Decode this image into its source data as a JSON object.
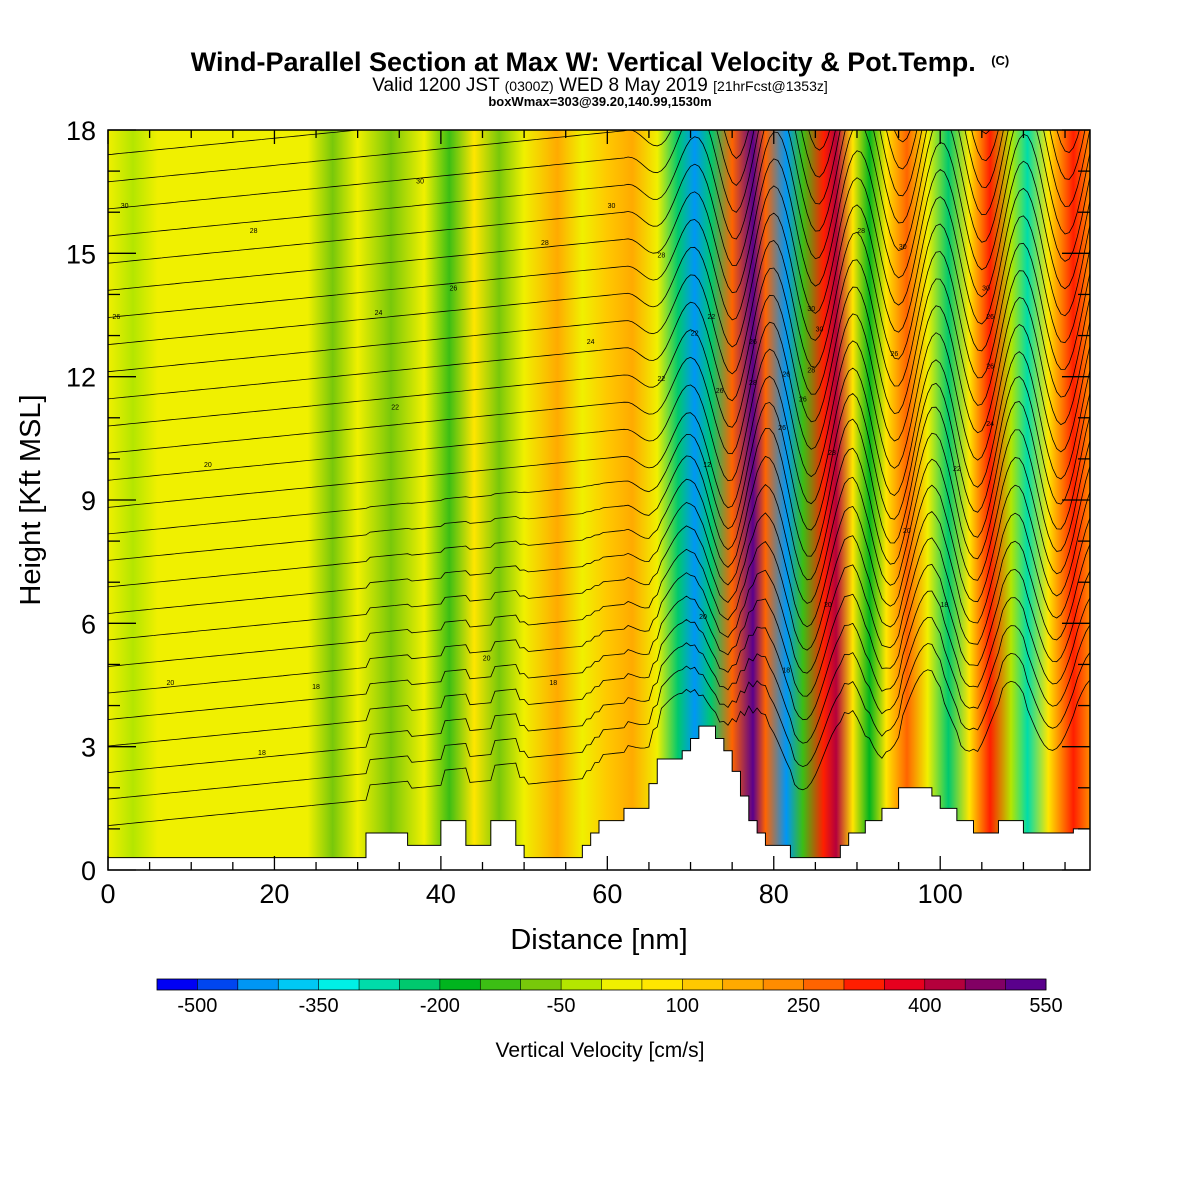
{
  "title": {
    "main": "Wind-Parallel Section at Max W: Vertical Velocity & Pot.Temp.",
    "copyright": "(C)",
    "valid_prefix": "Valid 1200 JST",
    "valid_utc": "(0300Z)",
    "valid_date": "WED 8 May 2019",
    "forecast": "[21hrFcst@1353z]",
    "boxwmax": "boxWmax=303@39.20,140.99,1530m"
  },
  "colorbar": {
    "label": "Vertical Velocity [cm/s]",
    "tick_labels": [
      "-500",
      "-350",
      "-200",
      "-50",
      "100",
      "250",
      "400",
      "550"
    ],
    "colors": [
      "#0000f5",
      "#0046f0",
      "#0096f5",
      "#00c8f5",
      "#00f0e6",
      "#00dcaa",
      "#00c86e",
      "#00b41e",
      "#3cbe14",
      "#78c80a",
      "#b4e600",
      "#f0f000",
      "#ffe600",
      "#ffc800",
      "#ffaa00",
      "#ff8c00",
      "#ff6400",
      "#ff1e00",
      "#e6001e",
      "#b4003c",
      "#820064",
      "#5a008c"
    ]
  },
  "chart_data": {
    "type": "heatmap",
    "title": "Wind-Parallel Section at Max W: Vertical Velocity & Pot.Temp.",
    "xlabel": "Distance [nm]",
    "ylabel": "Height [Kft MSL]",
    "xlim": [
      0,
      118
    ],
    "ylim": [
      0,
      18
    ],
    "x_ticks": [
      "0",
      "20",
      "40",
      "60",
      "80",
      "100"
    ],
    "y_ticks": [
      "0",
      "3",
      "6",
      "9",
      "12",
      "15",
      "18"
    ],
    "vertical_velocity_bands": [
      {
        "x": 0,
        "w": 0
      },
      {
        "x": 3,
        "w": -30
      },
      {
        "x": 6,
        "w": 15
      },
      {
        "x": 15,
        "w": 15
      },
      {
        "x": 24,
        "w": 10
      },
      {
        "x": 27,
        "w": -60
      },
      {
        "x": 30,
        "w": 10
      },
      {
        "x": 34,
        "w": -80
      },
      {
        "x": 38,
        "w": 25
      },
      {
        "x": 41,
        "w": -110
      },
      {
        "x": 44,
        "w": 50
      },
      {
        "x": 47,
        "w": -100
      },
      {
        "x": 50,
        "w": 40
      },
      {
        "x": 54,
        "w": 150
      },
      {
        "x": 57,
        "w": 35
      },
      {
        "x": 60,
        "w": 120
      },
      {
        "x": 63,
        "w": 150
      },
      {
        "x": 66,
        "w": 20
      },
      {
        "x": 68.5,
        "w": -250
      },
      {
        "x": 70.5,
        "w": -420
      },
      {
        "x": 72.5,
        "w": -250
      },
      {
        "x": 75,
        "w": 250
      },
      {
        "x": 77.5,
        "w": 560
      },
      {
        "x": 79,
        "w": 250
      },
      {
        "x": 81.5,
        "w": -420
      },
      {
        "x": 83.5,
        "w": -150
      },
      {
        "x": 86,
        "w": 300
      },
      {
        "x": 87.5,
        "w": 420
      },
      {
        "x": 89.5,
        "w": 80
      },
      {
        "x": 91.5,
        "w": -200
      },
      {
        "x": 93.5,
        "w": 50
      },
      {
        "x": 96,
        "w": 250
      },
      {
        "x": 98.5,
        "w": 40
      },
      {
        "x": 101,
        "w": -250
      },
      {
        "x": 103.5,
        "w": 50
      },
      {
        "x": 106,
        "w": 300
      },
      {
        "x": 108.5,
        "w": -50
      },
      {
        "x": 110.5,
        "w": -300
      },
      {
        "x": 113,
        "w": 50
      },
      {
        "x": 116,
        "w": 300
      },
      {
        "x": 118,
        "w": 200
      }
    ],
    "terrain_kft": [
      {
        "x": 0,
        "h": 0.3
      },
      {
        "x": 30,
        "h": 0.3
      },
      {
        "x": 31,
        "h": 0.9
      },
      {
        "x": 35,
        "h": 0.9
      },
      {
        "x": 36,
        "h": 0.6
      },
      {
        "x": 39,
        "h": 0.6
      },
      {
        "x": 40,
        "h": 1.2
      },
      {
        "x": 42,
        "h": 1.2
      },
      {
        "x": 43,
        "h": 0.6
      },
      {
        "x": 45,
        "h": 0.6
      },
      {
        "x": 46,
        "h": 1.2
      },
      {
        "x": 48,
        "h": 1.2
      },
      {
        "x": 49,
        "h": 0.6
      },
      {
        "x": 50,
        "h": 0.3
      },
      {
        "x": 56,
        "h": 0.3
      },
      {
        "x": 57,
        "h": 0.6
      },
      {
        "x": 58,
        "h": 0.9
      },
      {
        "x": 59,
        "h": 1.2
      },
      {
        "x": 62,
        "h": 1.5
      },
      {
        "x": 65,
        "h": 2.1
      },
      {
        "x": 66,
        "h": 2.7
      },
      {
        "x": 69,
        "h": 2.9
      },
      {
        "x": 70,
        "h": 3.2
      },
      {
        "x": 71,
        "h": 3.5
      },
      {
        "x": 72,
        "h": 3.5
      },
      {
        "x": 73,
        "h": 3.2
      },
      {
        "x": 74,
        "h": 2.9
      },
      {
        "x": 75,
        "h": 2.4
      },
      {
        "x": 76,
        "h": 1.8
      },
      {
        "x": 77,
        "h": 1.2
      },
      {
        "x": 78,
        "h": 0.9
      },
      {
        "x": 79,
        "h": 0.6
      },
      {
        "x": 82,
        "h": 0.3
      },
      {
        "x": 87,
        "h": 0.3
      },
      {
        "x": 88,
        "h": 0.6
      },
      {
        "x": 89,
        "h": 0.9
      },
      {
        "x": 91,
        "h": 1.2
      },
      {
        "x": 93,
        "h": 1.5
      },
      {
        "x": 95,
        "h": 2.0
      },
      {
        "x": 98,
        "h": 2.0
      },
      {
        "x": 99,
        "h": 1.8
      },
      {
        "x": 100,
        "h": 1.5
      },
      {
        "x": 102,
        "h": 1.2
      },
      {
        "x": 104,
        "h": 0.9
      },
      {
        "x": 107,
        "h": 1.2
      },
      {
        "x": 110,
        "h": 0.9
      },
      {
        "x": 116,
        "h": 1.0
      },
      {
        "x": 118,
        "h": 0.3
      }
    ],
    "theta_contour_labels": [
      {
        "text": "30",
        "x": 2.0,
        "y": 16.1
      },
      {
        "text": "28",
        "x": 17.5,
        "y": 15.5
      },
      {
        "text": "30",
        "x": 37.5,
        "y": 16.7
      },
      {
        "text": "30",
        "x": 60.5,
        "y": 16.1
      },
      {
        "text": "28",
        "x": 52.5,
        "y": 15.2
      },
      {
        "text": "28",
        "x": 66.5,
        "y": 14.9
      },
      {
        "text": "26",
        "x": 41.5,
        "y": 14.1
      },
      {
        "text": "24",
        "x": 32.5,
        "y": 13.5
      },
      {
        "text": "26",
        "x": 1.0,
        "y": 13.4
      },
      {
        "text": "24",
        "x": 58,
        "y": 12.8
      },
      {
        "text": "22",
        "x": 34.5,
        "y": 11.2
      },
      {
        "text": "22",
        "x": 66.5,
        "y": 11.9
      },
      {
        "text": "20",
        "x": 12,
        "y": 9.8
      },
      {
        "text": "22",
        "x": 70.5,
        "y": 13.0
      },
      {
        "text": "22",
        "x": 72.5,
        "y": 13.4
      },
      {
        "text": "26",
        "x": 73.5,
        "y": 11.6
      },
      {
        "text": "12",
        "x": 72.0,
        "y": 9.8
      },
      {
        "text": "26",
        "x": 77.5,
        "y": 12.8
      },
      {
        "text": "28",
        "x": 77.5,
        "y": 11.8
      },
      {
        "text": "26",
        "x": 81.5,
        "y": 12.0
      },
      {
        "text": "30",
        "x": 84.5,
        "y": 13.6
      },
      {
        "text": "30",
        "x": 85.5,
        "y": 13.1
      },
      {
        "text": "28",
        "x": 84.5,
        "y": 12.1
      },
      {
        "text": "26",
        "x": 83.5,
        "y": 11.4
      },
      {
        "text": "26",
        "x": 81,
        "y": 10.7
      },
      {
        "text": "28",
        "x": 87.0,
        "y": 10.1
      },
      {
        "text": "28",
        "x": 90.5,
        "y": 15.5
      },
      {
        "text": "30",
        "x": 95.5,
        "y": 15.1
      },
      {
        "text": "26",
        "x": 94.5,
        "y": 12.5
      },
      {
        "text": "30",
        "x": 105.5,
        "y": 14.1
      },
      {
        "text": "26",
        "x": 106,
        "y": 13.4
      },
      {
        "text": "26",
        "x": 106,
        "y": 12.2
      },
      {
        "text": "24",
        "x": 106,
        "y": 10.8
      },
      {
        "text": "22",
        "x": 102,
        "y": 9.7
      },
      {
        "text": "20",
        "x": 96,
        "y": 8.2
      },
      {
        "text": "18",
        "x": 100.5,
        "y": 6.4
      },
      {
        "text": "20",
        "x": 86.5,
        "y": 6.4
      },
      {
        "text": "20",
        "x": 71.5,
        "y": 6.1
      },
      {
        "text": "18",
        "x": 81.5,
        "y": 4.8
      },
      {
        "text": "20",
        "x": 45.5,
        "y": 5.1
      },
      {
        "text": "18",
        "x": 53.5,
        "y": 4.5
      },
      {
        "text": "20",
        "x": 7.5,
        "y": 4.5
      },
      {
        "text": "18",
        "x": 25,
        "y": 4.4
      },
      {
        "text": "18",
        "x": 18.5,
        "y": 2.8
      }
    ]
  }
}
